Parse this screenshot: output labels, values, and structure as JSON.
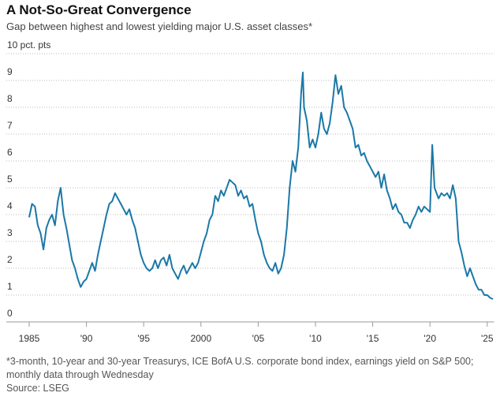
{
  "chart_data": {
    "type": "line",
    "title": "A Not-So-Great Convergence",
    "subtitle": "Gap between highest and lowest yielding major U.S. asset classes*",
    "footnote": "*3-month, 10-year and 30-year Treasurys, ICE BofA U.S. corporate bond index, earnings yield on S&P 500; monthly data through Wednesday",
    "source": "Source: LSEG",
    "color": "#1a78a8",
    "grid": true,
    "xlim": [
      1985,
      2025.6
    ],
    "ylim": [
      0,
      10
    ],
    "yticks": [
      0,
      1,
      2,
      3,
      4,
      5,
      6,
      7,
      8,
      9,
      {
        "value": 10,
        "label": "10 pct. pts"
      }
    ],
    "xticks": [
      1985,
      {
        "value": 1990,
        "label": "'90"
      },
      {
        "value": 1995,
        "label": "'95"
      },
      2000,
      {
        "value": 2005,
        "label": "'05"
      },
      {
        "value": 2010,
        "label": "'10"
      },
      {
        "value": 2015,
        "label": "'15"
      },
      {
        "value": 2020,
        "label": "'20"
      },
      {
        "value": 2025,
        "label": "'25"
      }
    ],
    "x": [
      1985.0,
      1985.25,
      1985.5,
      1985.75,
      1986.0,
      1986.25,
      1986.5,
      1986.75,
      1987.0,
      1987.25,
      1987.5,
      1987.75,
      1988.0,
      1988.25,
      1988.5,
      1988.75,
      1989.0,
      1989.25,
      1989.5,
      1989.75,
      1990.0,
      1990.25,
      1990.5,
      1990.75,
      1991.0,
      1991.25,
      1991.5,
      1991.75,
      1992.0,
      1992.25,
      1992.5,
      1992.75,
      1993.0,
      1993.25,
      1993.5,
      1993.75,
      1994.0,
      1994.25,
      1994.5,
      1994.75,
      1995.0,
      1995.25,
      1995.5,
      1995.75,
      1996.0,
      1996.25,
      1996.5,
      1996.75,
      1997.0,
      1997.25,
      1997.5,
      1997.75,
      1998.0,
      1998.25,
      1998.5,
      1998.75,
      1999.0,
      1999.25,
      1999.5,
      1999.75,
      2000.0,
      2000.25,
      2000.5,
      2000.75,
      2001.0,
      2001.25,
      2001.5,
      2001.75,
      2002.0,
      2002.25,
      2002.5,
      2002.75,
      2003.0,
      2003.25,
      2003.5,
      2003.75,
      2004.0,
      2004.25,
      2004.5,
      2004.75,
      2005.0,
      2005.25,
      2005.5,
      2005.75,
      2006.0,
      2006.25,
      2006.5,
      2006.75,
      2007.0,
      2007.25,
      2007.5,
      2007.75,
      2008.0,
      2008.25,
      2008.5,
      2008.75,
      2008.9,
      2009.0,
      2009.25,
      2009.5,
      2009.75,
      2010.0,
      2010.25,
      2010.5,
      2010.75,
      2011.0,
      2011.25,
      2011.5,
      2011.75,
      2012.0,
      2012.25,
      2012.5,
      2012.75,
      2013.0,
      2013.25,
      2013.5,
      2013.75,
      2014.0,
      2014.25,
      2014.5,
      2014.75,
      2015.0,
      2015.25,
      2015.5,
      2015.75,
      2016.0,
      2016.25,
      2016.5,
      2016.75,
      2017.0,
      2017.25,
      2017.5,
      2017.75,
      2018.0,
      2018.25,
      2018.5,
      2018.75,
      2019.0,
      2019.25,
      2019.5,
      2019.75,
      2020.0,
      2020.2,
      2020.4,
      2020.75,
      2021.0,
      2021.25,
      2021.5,
      2021.75,
      2022.0,
      2022.25,
      2022.5,
      2022.75,
      2023.0,
      2023.25,
      2023.5,
      2023.75,
      2024.0,
      2024.25,
      2024.5,
      2024.75,
      2025.0,
      2025.25,
      2025.5
    ],
    "values": [
      3.9,
      4.4,
      4.3,
      3.6,
      3.3,
      2.7,
      3.5,
      3.8,
      4.0,
      3.6,
      4.5,
      5.0,
      4.0,
      3.5,
      2.9,
      2.3,
      2.0,
      1.6,
      1.3,
      1.5,
      1.6,
      1.9,
      2.2,
      1.9,
      2.5,
      3.0,
      3.5,
      4.0,
      4.4,
      4.5,
      4.8,
      4.6,
      4.4,
      4.2,
      4.0,
      4.2,
      3.8,
      3.5,
      3.0,
      2.5,
      2.2,
      2.0,
      1.9,
      2.0,
      2.3,
      2.0,
      2.3,
      2.4,
      2.1,
      2.5,
      2.0,
      1.8,
      1.6,
      1.9,
      2.1,
      1.8,
      2.0,
      2.2,
      2.0,
      2.2,
      2.6,
      3.0,
      3.3,
      3.8,
      4.0,
      4.7,
      4.5,
      4.9,
      4.7,
      5.0,
      5.3,
      5.2,
      5.1,
      4.7,
      4.9,
      4.6,
      4.7,
      4.3,
      4.4,
      3.8,
      3.3,
      3.0,
      2.5,
      2.2,
      2.0,
      1.9,
      2.2,
      1.8,
      2.0,
      2.5,
      3.5,
      5.0,
      6.0,
      5.6,
      6.5,
      8.5,
      9.3,
      8.0,
      7.5,
      6.5,
      6.8,
      6.5,
      7.0,
      7.8,
      7.2,
      7.0,
      7.4,
      8.2,
      9.2,
      8.5,
      8.8,
      8.0,
      7.8,
      7.5,
      7.2,
      6.5,
      6.6,
      6.2,
      6.3,
      6.0,
      5.8,
      5.6,
      5.4,
      5.6,
      5.0,
      5.5,
      4.9,
      4.6,
      4.2,
      4.4,
      4.1,
      4.0,
      3.7,
      3.7,
      3.5,
      3.8,
      4.0,
      4.3,
      4.1,
      4.3,
      4.2,
      4.1,
      6.6,
      5.0,
      4.6,
      4.8,
      4.7,
      4.8,
      4.6,
      5.1,
      4.6,
      3.0,
      2.6,
      2.1,
      1.7,
      2.0,
      1.7,
      1.4,
      1.2,
      1.2,
      1.0,
      1.0,
      0.9,
      0.85
    ]
  }
}
